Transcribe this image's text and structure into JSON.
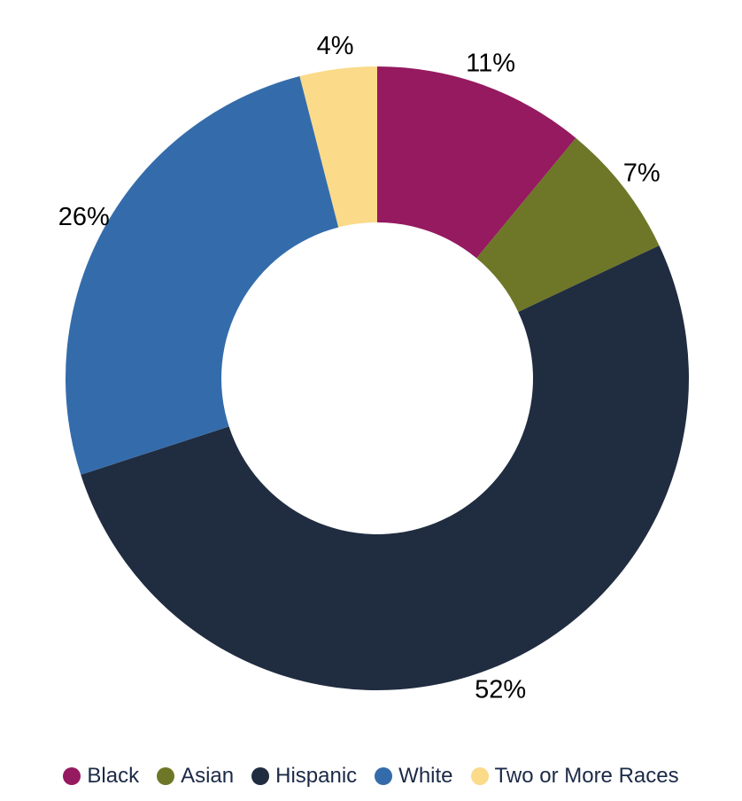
{
  "chart_data": {
    "type": "pie",
    "donut": true,
    "categories": [
      "Black",
      "Asian",
      "Hispanic",
      "White",
      "Two or More Races"
    ],
    "values": [
      11,
      7,
      52,
      26,
      4
    ],
    "labels": [
      "11%",
      "7%",
      "52%",
      "26%",
      "4%"
    ],
    "colors": [
      "#951a60",
      "#6d7727",
      "#202c40",
      "#346cab",
      "#fbda89"
    ],
    "start_angle": "12 o'clock",
    "direction": "clockwise",
    "legend": {
      "position": "bottom",
      "entries": [
        "Black",
        "Asian",
        "Hispanic",
        "White",
        "Two or More Races"
      ]
    }
  }
}
